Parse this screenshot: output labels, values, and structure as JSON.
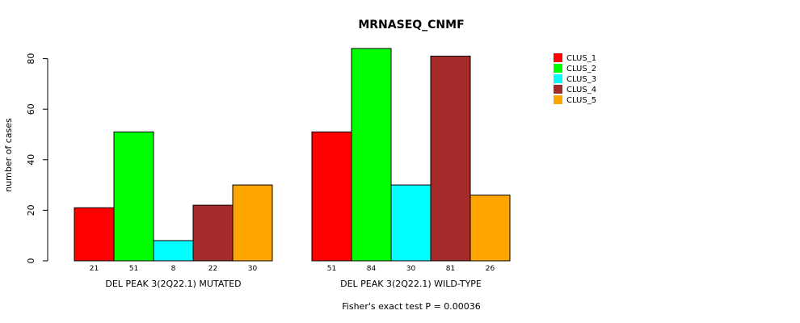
{
  "chart_data": {
    "type": "bar",
    "title": "MRNASEQ_CNMF",
    "ylabel": "number of cases",
    "xlabel": "",
    "ylim": [
      0,
      80
    ],
    "yticks": [
      0,
      20,
      40,
      60,
      80
    ],
    "groups": [
      "DEL PEAK  3(2Q22.1) MUTATED",
      "DEL PEAK  3(2Q22.1) WILD-TYPE"
    ],
    "series": [
      {
        "name": "CLUS_1",
        "color": "#ff0000",
        "values": [
          21,
          51
        ]
      },
      {
        "name": "CLUS_2",
        "color": "#00ff00",
        "values": [
          51,
          84
        ]
      },
      {
        "name": "CLUS_3",
        "color": "#00ffff",
        "values": [
          8,
          30
        ]
      },
      {
        "name": "CLUS_4",
        "color": "#a52a2a",
        "values": [
          22,
          81
        ]
      },
      {
        "name": "CLUS_5",
        "color": "#ffa500",
        "values": [
          30,
          26
        ]
      }
    ],
    "legend_position": "top-right",
    "annotation": "Fisher's exact test P = 0.00036"
  }
}
